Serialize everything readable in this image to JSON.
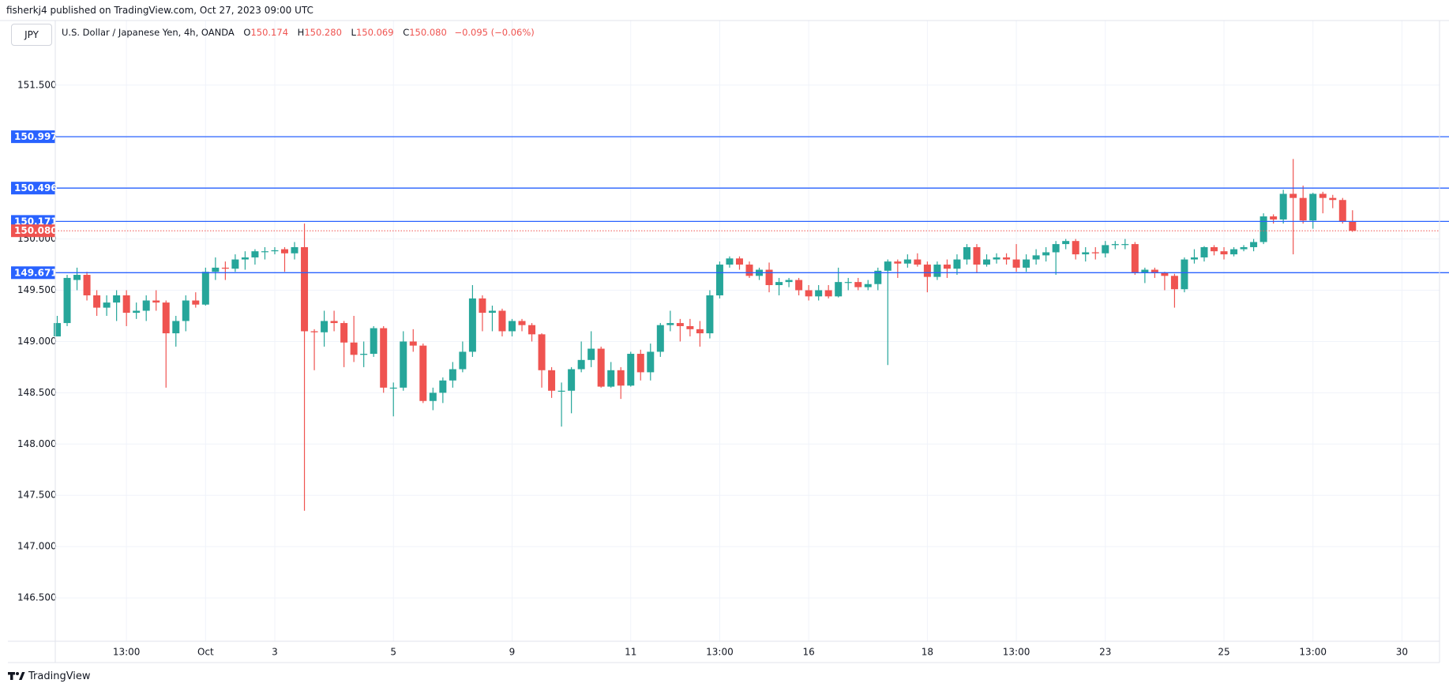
{
  "header": "fisherkj4 published on TradingView.com, Oct 27, 2023 09:00 UTC",
  "symbol": "JPY",
  "description": "U.S. Dollar / Japanese Yen, 4h, OANDA",
  "ohlc": [
    {
      "key": "O",
      "value": "150.174"
    },
    {
      "key": "H",
      "value": "150.280"
    },
    {
      "key": "L",
      "value": "150.069"
    },
    {
      "key": "C",
      "value": "150.080"
    }
  ],
  "change": "−0.095 (−0.06%)",
  "footer": "TradingView",
  "chart_data": {
    "type": "candlestick",
    "up_color": "#26a69a",
    "down_color": "#ef5350",
    "grid": true,
    "ylim": [
      146.077,
      152.13
    ],
    "yticks": [
      {
        "value": 146.5,
        "label": "146.500"
      },
      {
        "value": 147,
        "label": "147.000"
      },
      {
        "value": 147.5,
        "label": "147.500"
      },
      {
        "value": 148,
        "label": "148.000"
      },
      {
        "value": 148.5,
        "label": "148.500"
      },
      {
        "value": 149,
        "label": "149.000"
      },
      {
        "value": 149.5,
        "label": "149.500"
      },
      {
        "value": 150,
        "label": "150.000"
      },
      {
        "value": 150.5,
        "label": "150.500"
      },
      {
        "value": 151,
        "label": "151.000"
      },
      {
        "value": 151.5,
        "label": "151.500"
      }
    ],
    "hline_color": "#2962ff",
    "hlines": [
      150.997,
      150.496,
      150.171,
      149.671
    ],
    "last_price": {
      "value": 150.08,
      "label": "150.080"
    },
    "categories": [
      null,
      null,
      null,
      null,
      null,
      null,
      null,
      "13:00",
      null,
      null,
      null,
      null,
      null,
      null,
      null,
      "Oct",
      null,
      null,
      null,
      null,
      null,
      null,
      "3",
      null,
      null,
      null,
      null,
      null,
      null,
      null,
      null,
      null,
      null,
      null,
      "5",
      null,
      null,
      null,
      null,
      null,
      null,
      null,
      null,
      null,
      null,
      null,
      "9",
      null,
      null,
      null,
      null,
      null,
      null,
      null,
      null,
      null,
      null,
      null,
      "11",
      null,
      null,
      null,
      null,
      null,
      null,
      null,
      null,
      "13:00",
      null,
      null,
      null,
      null,
      null,
      null,
      null,
      null,
      "16",
      null,
      null,
      null,
      null,
      null,
      null,
      null,
      null,
      null,
      null,
      null,
      "18",
      null,
      null,
      null,
      null,
      null,
      null,
      null,
      null,
      "13:00",
      null,
      null,
      null,
      null,
      null,
      null,
      null,
      null,
      "23",
      null,
      null,
      null,
      null,
      null,
      null,
      null,
      null,
      null,
      null,
      null,
      "25",
      null,
      null,
      null,
      null,
      null,
      null,
      null,
      null,
      "13:00",
      null,
      null,
      null,
      null,
      null,
      null,
      null,
      null,
      "30",
      null,
      null,
      null
    ],
    "open": [
      149.05,
      149.18,
      149.6,
      149.65,
      149.45,
      149.33,
      149.38,
      149.45,
      149.28,
      149.3,
      149.4,
      149.38,
      149.08,
      149.2,
      149.4,
      149.36,
      149.68,
      149.72,
      149.71,
      149.8,
      149.82,
      149.88,
      149.88,
      149.9,
      149.86,
      149.92,
      149.1,
      149.09,
      149.2,
      149.18,
      148.99,
      148.87,
      148.88,
      149.13,
      148.55,
      148.55,
      149.0,
      148.96,
      148.42,
      148.5,
      148.62,
      148.73,
      148.9,
      149.42,
      149.28,
      149.3,
      149.1,
      149.2,
      149.16,
      149.07,
      148.72,
      148.52,
      148.52,
      148.73,
      148.82,
      148.93,
      148.56,
      148.72,
      148.57,
      148.88,
      148.7,
      148.9,
      149.16,
      149.18,
      149.15,
      149.12,
      149.08,
      149.45,
      149.75,
      149.81,
      149.75,
      149.64,
      149.7,
      149.55,
      149.58,
      149.6,
      149.5,
      149.44,
      149.5,
      149.44,
      149.58,
      149.58,
      149.53,
      149.56,
      149.69,
      149.78,
      149.76,
      149.8,
      149.75,
      149.63,
      149.75,
      149.71,
      149.8,
      149.92,
      149.75,
      149.8,
      149.82,
      149.8,
      149.72,
      149.8,
      149.84,
      149.87,
      149.95,
      149.98,
      149.85,
      149.87,
      149.86,
      149.94,
      149.95,
      149.95,
      149.67,
      149.7,
      149.67,
      149.64,
      149.51,
      149.8,
      149.82,
      149.92,
      149.88,
      149.85,
      149.9,
      149.92,
      149.97,
      150.22,
      150.19,
      150.44,
      150.4,
      150.18,
      150.44,
      150.4,
      150.38,
      150.174,
      null,
      null,
      null,
      null,
      null,
      null,
      null,
      null
    ],
    "high": [
      149.25,
      149.65,
      149.72,
      149.68,
      149.5,
      149.45,
      149.5,
      149.5,
      149.38,
      149.45,
      149.5,
      149.4,
      149.25,
      149.45,
      149.48,
      149.72,
      149.82,
      149.78,
      149.85,
      149.88,
      149.9,
      149.92,
      149.92,
      149.92,
      149.97,
      150.15,
      149.12,
      149.3,
      149.3,
      149.2,
      149.25,
      149.0,
      149.15,
      149.15,
      148.6,
      149.1,
      149.12,
      148.98,
      148.55,
      148.65,
      148.8,
      149.0,
      149.55,
      149.45,
      149.35,
      149.32,
      149.22,
      149.22,
      149.18,
      149.08,
      148.75,
      148.6,
      148.75,
      149.0,
      149.1,
      148.95,
      148.8,
      148.75,
      148.9,
      148.92,
      148.98,
      149.18,
      149.3,
      149.22,
      149.22,
      149.2,
      149.5,
      149.78,
      149.83,
      149.83,
      149.78,
      149.72,
      149.77,
      149.62,
      149.62,
      149.62,
      149.55,
      149.55,
      149.55,
      149.72,
      149.62,
      149.62,
      149.6,
      149.72,
      149.8,
      149.8,
      149.85,
      149.86,
      149.78,
      149.78,
      149.8,
      149.85,
      149.95,
      149.95,
      149.85,
      149.86,
      149.86,
      149.95,
      149.85,
      149.9,
      149.92,
      149.98,
      150.0,
      150.0,
      149.92,
      149.92,
      149.98,
      149.98,
      150.0,
      149.97,
      149.72,
      149.72,
      149.68,
      149.66,
      149.82,
      149.9,
      149.93,
      149.94,
      149.92,
      149.92,
      149.94,
      150.0,
      150.25,
      150.24,
      150.48,
      150.78,
      150.52,
      150.45,
      150.46,
      150.43,
      150.4,
      150.28,
      null,
      null,
      null,
      null,
      null,
      null,
      null,
      null
    ],
    "low": [
      149.05,
      149.15,
      149.5,
      149.4,
      149.25,
      149.25,
      149.2,
      149.15,
      149.22,
      149.2,
      149.3,
      148.55,
      148.95,
      149.1,
      149.33,
      149.35,
      149.6,
      149.6,
      149.68,
      149.7,
      149.75,
      149.8,
      149.85,
      149.68,
      149.8,
      147.35,
      148.72,
      148.95,
      149.1,
      148.75,
      148.8,
      148.75,
      148.85,
      148.5,
      148.27,
      148.52,
      148.9,
      148.4,
      148.33,
      148.4,
      148.55,
      148.7,
      148.85,
      149.1,
      149.1,
      149.05,
      149.05,
      149.1,
      149.0,
      148.55,
      148.45,
      148.17,
      148.3,
      148.7,
      148.75,
      148.55,
      148.55,
      148.44,
      148.56,
      148.62,
      148.62,
      148.85,
      149.1,
      149.0,
      149.05,
      148.95,
      149.03,
      149.42,
      149.72,
      149.7,
      149.62,
      149.6,
      149.48,
      149.45,
      149.53,
      149.45,
      149.4,
      149.4,
      149.42,
      149.43,
      149.5,
      149.5,
      149.5,
      149.5,
      148.77,
      149.62,
      149.72,
      149.73,
      149.48,
      149.6,
      149.62,
      149.65,
      149.75,
      149.67,
      149.73,
      149.76,
      149.75,
      149.68,
      149.68,
      149.75,
      149.78,
      149.65,
      149.9,
      149.8,
      149.78,
      149.8,
      149.82,
      149.9,
      149.9,
      149.65,
      149.57,
      149.62,
      149.5,
      149.33,
      149.48,
      149.76,
      149.78,
      149.84,
      149.8,
      149.83,
      149.88,
      149.88,
      149.95,
      150.15,
      150.15,
      149.85,
      150.15,
      150.1,
      150.25,
      150.3,
      150.15,
      150.069,
      null,
      null,
      null,
      null,
      null,
      null,
      null,
      null
    ],
    "close": [
      149.18,
      149.62,
      149.65,
      149.45,
      149.33,
      149.38,
      149.45,
      149.28,
      149.3,
      149.4,
      149.38,
      149.08,
      149.2,
      149.4,
      149.36,
      149.68,
      149.72,
      149.71,
      149.8,
      149.82,
      149.88,
      149.88,
      149.89,
      149.86,
      149.92,
      149.1,
      149.09,
      149.2,
      149.18,
      148.99,
      148.87,
      148.88,
      149.13,
      148.55,
      148.55,
      149.0,
      148.96,
      148.42,
      148.5,
      148.62,
      148.73,
      148.9,
      149.42,
      149.28,
      149.3,
      149.1,
      149.2,
      149.16,
      149.07,
      148.72,
      148.52,
      148.52,
      148.73,
      148.82,
      148.93,
      148.56,
      148.72,
      148.57,
      148.88,
      148.7,
      148.9,
      149.16,
      149.18,
      149.15,
      149.12,
      149.08,
      149.45,
      149.75,
      149.81,
      149.75,
      149.64,
      149.7,
      149.55,
      149.58,
      149.6,
      149.5,
      149.44,
      149.5,
      149.44,
      149.58,
      149.58,
      149.53,
      149.56,
      149.69,
      149.78,
      149.76,
      149.8,
      149.75,
      149.63,
      149.75,
      149.71,
      149.8,
      149.92,
      149.75,
      149.8,
      149.82,
      149.8,
      149.72,
      149.8,
      149.84,
      149.87,
      149.95,
      149.98,
      149.85,
      149.87,
      149.86,
      149.94,
      149.95,
      149.95,
      149.67,
      149.7,
      149.67,
      149.64,
      149.51,
      149.8,
      149.82,
      149.92,
      149.88,
      149.85,
      149.9,
      149.92,
      149.97,
      150.22,
      150.19,
      150.44,
      150.4,
      150.18,
      150.44,
      150.4,
      150.38,
      150.17,
      150.08,
      null,
      null,
      null,
      null,
      null,
      null,
      null,
      null
    ]
  }
}
